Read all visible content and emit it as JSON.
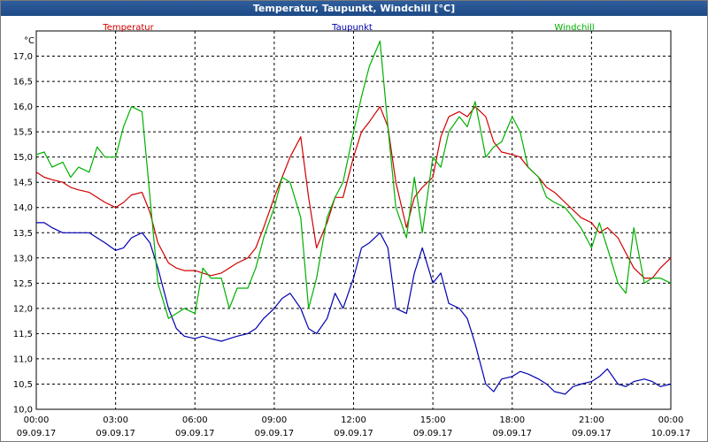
{
  "window": {
    "title": "Temperatur, Taupunkt, Windchill [°C]"
  },
  "chart_data": {
    "type": "line",
    "title": "Temperatur, Taupunkt, Windchill [°C]",
    "ylabel": "°C",
    "xlabel": "",
    "ylim": [
      10.0,
      17.5
    ],
    "xlim": [
      0,
      24
    ],
    "grid": true,
    "legend_placement": "top",
    "y_ticks": [
      "10,0",
      "10,5",
      "11,0",
      "11,5",
      "12,0",
      "12,5",
      "13,0",
      "13,5",
      "14,0",
      "14,5",
      "15,0",
      "15,5",
      "16,0",
      "16,5",
      "17,0"
    ],
    "x_ticks": [
      {
        "time": "00:00",
        "date": "09.09.17"
      },
      {
        "time": "03:00",
        "date": "09.09.17"
      },
      {
        "time": "06:00",
        "date": "09.09.17"
      },
      {
        "time": "09:00",
        "date": "09.09.17"
      },
      {
        "time": "12:00",
        "date": "09.09.17"
      },
      {
        "time": "15:00",
        "date": "09.09.17"
      },
      {
        "time": "18:00",
        "date": "09.09.17"
      },
      {
        "time": "21:00",
        "date": "09.09.17"
      },
      {
        "time": "00:00",
        "date": "10.09.17"
      }
    ],
    "series": [
      {
        "name": "Temperatur",
        "color": "#d00000",
        "x": [
          0,
          0.3,
          0.6,
          1,
          1.3,
          1.6,
          2,
          2.3,
          2.6,
          3,
          3.3,
          3.6,
          4,
          4.3,
          4.6,
          5,
          5.3,
          5.6,
          6,
          6.3,
          6.6,
          7,
          7.3,
          7.6,
          8,
          8.3,
          8.6,
          9,
          9.3,
          9.6,
          10,
          10.3,
          10.6,
          11,
          11.3,
          11.6,
          12,
          12.3,
          12.6,
          13,
          13.3,
          13.6,
          14,
          14.3,
          14.6,
          15,
          15.3,
          15.6,
          16,
          16.3,
          16.6,
          17,
          17.3,
          17.6,
          18,
          18.3,
          18.6,
          19,
          19.3,
          19.6,
          20,
          20.3,
          20.6,
          21,
          21.3,
          21.6,
          22,
          22.3,
          22.6,
          23,
          23.3,
          23.6,
          24
        ],
        "y": [
          14.7,
          14.6,
          14.55,
          14.5,
          14.4,
          14.35,
          14.3,
          14.2,
          14.1,
          14.0,
          14.1,
          14.25,
          14.3,
          13.9,
          13.3,
          12.9,
          12.8,
          12.75,
          12.75,
          12.7,
          12.65,
          12.7,
          12.8,
          12.9,
          13.0,
          13.2,
          13.6,
          14.2,
          14.6,
          15.0,
          15.4,
          14.2,
          13.2,
          13.7,
          14.2,
          14.2,
          15.0,
          15.5,
          15.7,
          16.0,
          15.6,
          14.5,
          13.6,
          14.2,
          14.4,
          14.6,
          15.4,
          15.8,
          15.9,
          15.8,
          16.0,
          15.8,
          15.3,
          15.1,
          15.05,
          15.0,
          14.8,
          14.6,
          14.4,
          14.3,
          14.1,
          13.95,
          13.8,
          13.7,
          13.5,
          13.6,
          13.4,
          13.1,
          12.8,
          12.6,
          12.6,
          12.8,
          13.0
        ]
      },
      {
        "name": "Taupunkt",
        "color": "#0000b0",
        "x": [
          0,
          0.3,
          0.6,
          1,
          1.3,
          1.6,
          2,
          2.3,
          2.6,
          3,
          3.3,
          3.6,
          4,
          4.3,
          4.6,
          5,
          5.3,
          5.6,
          6,
          6.3,
          6.6,
          7,
          7.3,
          7.6,
          8,
          8.3,
          8.6,
          9,
          9.3,
          9.6,
          10,
          10.3,
          10.6,
          11,
          11.3,
          11.6,
          12,
          12.3,
          12.6,
          13,
          13.3,
          13.6,
          14,
          14.3,
          14.6,
          15,
          15.3,
          15.6,
          16,
          16.3,
          16.6,
          17,
          17.3,
          17.6,
          18,
          18.3,
          18.6,
          19,
          19.3,
          19.6,
          20,
          20.3,
          20.6,
          21,
          21.3,
          21.6,
          22,
          22.3,
          22.6,
          23,
          23.3,
          23.6,
          24
        ],
        "y": [
          13.7,
          13.7,
          13.6,
          13.5,
          13.5,
          13.5,
          13.5,
          13.4,
          13.3,
          13.15,
          13.2,
          13.4,
          13.5,
          13.3,
          12.8,
          12.0,
          11.6,
          11.45,
          11.4,
          11.45,
          11.4,
          11.35,
          11.4,
          11.45,
          11.5,
          11.6,
          11.8,
          12.0,
          12.2,
          12.3,
          12.0,
          11.6,
          11.5,
          11.8,
          12.3,
          12.0,
          12.6,
          13.2,
          13.3,
          13.5,
          13.2,
          12.0,
          11.9,
          12.7,
          13.2,
          12.5,
          12.7,
          12.1,
          12.0,
          11.8,
          11.3,
          10.5,
          10.35,
          10.6,
          10.65,
          10.75,
          10.7,
          10.6,
          10.5,
          10.35,
          10.3,
          10.45,
          10.5,
          10.55,
          10.65,
          10.8,
          10.5,
          10.45,
          10.55,
          10.6,
          10.55,
          10.45,
          10.5
        ]
      },
      {
        "name": "Windchill",
        "color": "#00b000",
        "x": [
          0,
          0.3,
          0.6,
          1,
          1.3,
          1.6,
          2,
          2.3,
          2.6,
          3,
          3.3,
          3.6,
          4,
          4.3,
          4.6,
          5,
          5.3,
          5.6,
          6,
          6.3,
          6.6,
          7,
          7.3,
          7.6,
          8,
          8.3,
          8.6,
          9,
          9.3,
          9.6,
          10,
          10.3,
          10.6,
          11,
          11.3,
          11.6,
          12,
          12.3,
          12.6,
          13,
          13.3,
          13.6,
          14,
          14.3,
          14.6,
          15,
          15.3,
          15.6,
          16,
          16.3,
          16.6,
          17,
          17.3,
          17.6,
          18,
          18.3,
          18.6,
          19,
          19.3,
          19.6,
          20,
          20.3,
          20.6,
          21,
          21.3,
          21.6,
          22,
          22.3,
          22.6,
          23,
          23.3,
          23.6,
          24
        ],
        "y": [
          15.05,
          15.1,
          14.8,
          14.9,
          14.6,
          14.8,
          14.7,
          15.2,
          15.0,
          15.0,
          15.6,
          16.0,
          15.9,
          14.2,
          12.5,
          11.8,
          11.9,
          12.0,
          11.9,
          12.8,
          12.6,
          12.6,
          12.0,
          12.4,
          12.4,
          12.8,
          13.4,
          14.0,
          14.6,
          14.5,
          13.8,
          12.0,
          12.6,
          13.8,
          14.2,
          14.5,
          15.5,
          16.2,
          16.8,
          17.3,
          15.6,
          14.0,
          13.4,
          14.6,
          13.5,
          15.0,
          14.8,
          15.5,
          15.8,
          15.6,
          16.1,
          15.0,
          15.2,
          15.3,
          15.8,
          15.5,
          14.8,
          14.6,
          14.2,
          14.1,
          14.0,
          13.8,
          13.6,
          13.2,
          13.7,
          13.2,
          12.5,
          12.3,
          13.6,
          12.5,
          12.6,
          12.6,
          12.5
        ]
      }
    ]
  }
}
